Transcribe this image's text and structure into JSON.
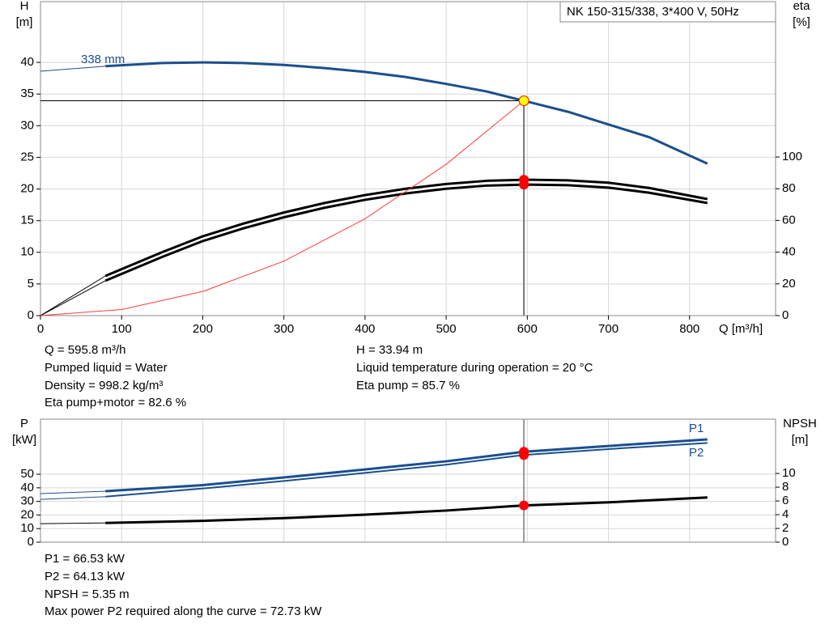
{
  "chart_data": [
    {
      "type": "line",
      "title": "NK 150-315/338, 3*400 V, 50Hz",
      "ylabel": "H",
      "yunit": "[m]",
      "y2label": "eta",
      "y2unit": "[%]",
      "xlabel": "Q [m³/h]",
      "xlim": [
        0,
        906
      ],
      "xticks": [
        0,
        100,
        200,
        300,
        400,
        500,
        600,
        700,
        800
      ],
      "ylim": [
        0,
        49.6
      ],
      "yticks": [
        0,
        5,
        10,
        15,
        20,
        25,
        30,
        35,
        40
      ],
      "y2lim": [
        0,
        198
      ],
      "y2ticks": [
        0,
        20,
        40,
        60,
        80,
        100
      ],
      "grid": true,
      "series": [
        {
          "name": "338 mm",
          "color": "#1b4f8c",
          "width": 3,
          "x": [
            0,
            80,
            150,
            200,
            250,
            300,
            350,
            400,
            450,
            500,
            550,
            600,
            650,
            700,
            750,
            822
          ],
          "values": [
            38.6,
            39.4,
            39.9,
            40,
            39.9,
            39.6,
            39.1,
            38.5,
            37.7,
            36.6,
            35.4,
            33.8,
            32.2,
            30.2,
            28.2,
            24
          ]
        },
        {
          "color": "#000000",
          "width": 3,
          "axis": "y2",
          "x": [
            0,
            80,
            150,
            200,
            250,
            300,
            350,
            400,
            450,
            500,
            550,
            600,
            650,
            700,
            750,
            822
          ],
          "values": [
            0,
            25,
            40,
            50,
            58,
            65,
            71,
            76,
            80,
            83,
            85,
            85.7,
            85.3,
            83.8,
            80.5,
            73.5
          ]
        },
        {
          "color": "#000000",
          "width": 3,
          "axis": "y2",
          "x": [
            0,
            80,
            150,
            200,
            250,
            300,
            350,
            400,
            450,
            500,
            550,
            600,
            650,
            700,
            750,
            822
          ],
          "values": [
            0,
            22,
            37,
            47,
            55,
            62,
            68,
            73,
            77,
            80,
            82,
            82.6,
            82.2,
            80.7,
            77.5,
            71
          ]
        },
        {
          "color": "#ff3b3b",
          "width": 1,
          "x": [
            0,
            100,
            200,
            300,
            400,
            500,
            595.8
          ],
          "values": [
            0,
            0.96,
            3.82,
            8.6,
            15.3,
            23.9,
            33.94
          ]
        }
      ],
      "points": [
        {
          "x": 595.8,
          "value": 33.94,
          "color": "#ffff00"
        },
        {
          "x": 595.8,
          "value": 85.7,
          "color": "#ff0000",
          "axis": "y2"
        },
        {
          "x": 595.8,
          "value": 82.6,
          "color": "#ff0000",
          "axis": "y2"
        }
      ],
      "notes": [
        [
          "Q = 595.8 m³/h",
          "Pumped liquid = Water",
          "Density = 998.2 kg/m³",
          "Eta pump+motor = 82.6 %"
        ],
        [
          "H = 33.94 m",
          "Liquid temperature during operation = 20 °C",
          "Eta pump = 85.7 %"
        ]
      ]
    },
    {
      "type": "line",
      "ylabel": "P",
      "yunit": "[kW]",
      "y2label": "NPSH",
      "y2unit": "[m]",
      "xlim": [
        0,
        906
      ],
      "ylim": [
        0,
        90.5
      ],
      "yticks": [
        0,
        10,
        20,
        30,
        40,
        50
      ],
      "y2lim": [
        0,
        17.9
      ],
      "y2ticks": [
        0,
        2,
        4,
        6,
        8,
        10
      ],
      "grid": true,
      "series": [
        {
          "name": "P1",
          "color": "#1b4f8c",
          "width": 3,
          "x": [
            0,
            80,
            200,
            300,
            400,
            500,
            595.8,
            700,
            822
          ],
          "values": [
            35.7,
            37.5,
            42,
            47.6,
            53.5,
            59.5,
            66.53,
            70.8,
            75.6
          ]
        },
        {
          "name": "P2",
          "color": "#1b4f8c",
          "width": 2,
          "x": [
            0,
            80,
            200,
            300,
            400,
            500,
            595.8,
            700,
            822
          ],
          "values": [
            31.5,
            33.5,
            39.5,
            45,
            51,
            57,
            64.13,
            68.5,
            73
          ]
        },
        {
          "color": "#000000",
          "width": 3,
          "axis": "y2",
          "x": [
            0,
            80,
            200,
            300,
            400,
            500,
            595.8,
            700,
            822
          ],
          "values": [
            2.7,
            2.8,
            3.1,
            3.5,
            4,
            4.6,
            5.35,
            5.8,
            6.5
          ]
        }
      ],
      "points": [
        {
          "x": 595.8,
          "value": 66.53,
          "color": "#ff0000"
        },
        {
          "x": 595.8,
          "value": 64.13,
          "color": "#ff0000"
        },
        {
          "x": 595.8,
          "value": 5.35,
          "color": "#ff0000",
          "axis": "y2"
        }
      ],
      "notes": [
        [
          "P1 = 66.53 kW",
          "P2 = 64.13 kW",
          "NPSH = 5.35 m",
          "Max power P2 required along the curve = 72.73 kW"
        ]
      ]
    }
  ]
}
